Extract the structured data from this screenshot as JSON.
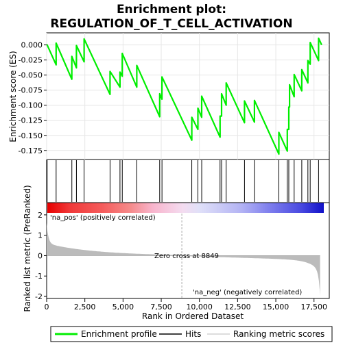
{
  "chart_data": {
    "type": "line",
    "title_line1": "Enrichment plot:",
    "title_line2": "REGULATION_OF_T_CELL_ACTIVATION",
    "es_ylabel": "Enrichment score (ES)",
    "metric_ylabel": "Ranked list metric (PreRanked)",
    "xlabel": "Rank in Ordered Dataset",
    "xlim": [
      0,
      18500
    ],
    "x_ticks": [
      0,
      2500,
      5000,
      7500,
      10000,
      12500,
      15000,
      17500
    ],
    "x_tick_labels": [
      "0",
      "2,500",
      "5,000",
      "7,500",
      "10,000",
      "12,500",
      "15,000",
      "17,500"
    ],
    "es_ylim": [
      -0.19,
      0.02
    ],
    "es_ticks": [
      0.0,
      -0.025,
      -0.05,
      -0.075,
      -0.1,
      -0.125,
      -0.15,
      -0.175
    ],
    "es_tick_labels": [
      "0.000",
      "-0.025",
      "-0.050",
      "-0.075",
      "-0.100",
      "-0.125",
      "-0.150",
      "-0.175"
    ],
    "metric_ylim": [
      -2.1,
      2.6
    ],
    "metric_ticks": [
      2,
      1,
      0,
      -1,
      -2
    ],
    "metric_tick_labels": [
      "2",
      "1",
      "0",
      "-1",
      "-2"
    ],
    "n_genes": 17900,
    "hits": [
      30,
      620,
      1650,
      1950,
      2450,
      4150,
      4800,
      4950,
      5900,
      7400,
      7550,
      9500,
      9900,
      10150,
      11350,
      11450,
      11750,
      12950,
      13600,
      15200,
      15750,
      15850,
      16200,
      16700,
      17100,
      17250,
      17800
    ],
    "es_points": [
      [
        0,
        0.0
      ],
      [
        30,
        0.0
      ],
      [
        620,
        -0.033
      ],
      [
        620,
        0.003
      ],
      [
        1650,
        -0.057
      ],
      [
        1650,
        -0.019
      ],
      [
        1950,
        -0.038
      ],
      [
        1950,
        -0.001
      ],
      [
        2450,
        -0.028
      ],
      [
        2450,
        0.01
      ],
      [
        4150,
        -0.082
      ],
      [
        4150,
        -0.044
      ],
      [
        4800,
        -0.07
      ],
      [
        4800,
        -0.045
      ],
      [
        4950,
        -0.052
      ],
      [
        4950,
        -0.014
      ],
      [
        5900,
        -0.07
      ],
      [
        5900,
        -0.034
      ],
      [
        7400,
        -0.119
      ],
      [
        7400,
        -0.081
      ],
      [
        7550,
        -0.09
      ],
      [
        7550,
        -0.053
      ],
      [
        9500,
        -0.158
      ],
      [
        9500,
        -0.12
      ],
      [
        9900,
        -0.14
      ],
      [
        9900,
        -0.105
      ],
      [
        10150,
        -0.12
      ],
      [
        10150,
        -0.085
      ],
      [
        11350,
        -0.153
      ],
      [
        11350,
        -0.118
      ],
      [
        11450,
        -0.118
      ],
      [
        11450,
        -0.081
      ],
      [
        11750,
        -0.1
      ],
      [
        11750,
        -0.063
      ],
      [
        12950,
        -0.129
      ],
      [
        12950,
        -0.093
      ],
      [
        13600,
        -0.128
      ],
      [
        13600,
        -0.092
      ],
      [
        15200,
        -0.181
      ],
      [
        15200,
        -0.145
      ],
      [
        15750,
        -0.176
      ],
      [
        15750,
        -0.14
      ],
      [
        15850,
        -0.14
      ],
      [
        15850,
        -0.103
      ],
      [
        15900,
        -0.103
      ],
      [
        15900,
        -0.066
      ],
      [
        16200,
        -0.086
      ],
      [
        16200,
        -0.049
      ],
      [
        16700,
        -0.076
      ],
      [
        16700,
        -0.041
      ],
      [
        17100,
        -0.063
      ],
      [
        17100,
        -0.026
      ],
      [
        17250,
        -0.032
      ],
      [
        17250,
        0.004
      ],
      [
        17800,
        -0.026
      ],
      [
        17800,
        0.011
      ],
      [
        18000,
        0.0
      ]
    ],
    "zero_cross": 8849,
    "zero_cross_label": "Zero cross at 8849",
    "pos_label": "'na_pos' (positively correlated)",
    "neg_label": "'na_neg' (negatively correlated)",
    "legend": [
      "Enrichment profile",
      "Hits",
      "Ranking metric scores"
    ],
    "colors": {
      "es_line": "#00ee00",
      "hits": "#000000",
      "metric_fill": "#bbbbbb",
      "zero_line": "#aaaaaa",
      "pos_text": "#cc0000",
      "neg_text": "#0000cc"
    }
  }
}
